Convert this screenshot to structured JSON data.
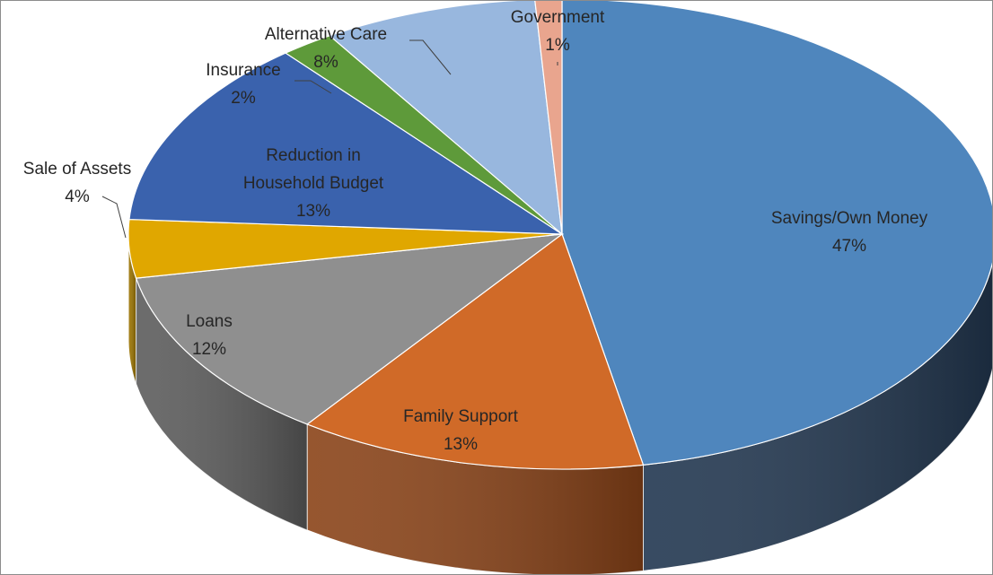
{
  "chart_data": {
    "type": "pie",
    "style": "3d-exploded-none",
    "title": "",
    "slices": [
      {
        "label": "Savings/Own Money",
        "pct_label": "47%",
        "value": 47,
        "color": "#4f86bd",
        "side": "#223750",
        "leader": false
      },
      {
        "label": "Family Support",
        "pct_label": "13%",
        "value": 13,
        "color": "#d06a28",
        "side": "#8a4318",
        "leader": false
      },
      {
        "label": "Loans",
        "pct_label": "12%",
        "value": 12,
        "color": "#8f8f8f",
        "side": "#5c5c5c",
        "leader": false
      },
      {
        "label": "Sale of Assets",
        "pct_label": "4%",
        "value": 4,
        "color": "#e0a700",
        "side": "#9c7400",
        "leader": true
      },
      {
        "label": "Reduction in Household Budget",
        "pct_label": "13%",
        "value": 13,
        "color": "#3a62ad",
        "side": "#27437a",
        "leader": false
      },
      {
        "label": "Insurance",
        "pct_label": "2%",
        "value": 2,
        "color": "#5e9a3a",
        "side": "#3c6526",
        "leader": true
      },
      {
        "label": "Alternative Care",
        "pct_label": "8%",
        "value": 8,
        "color": "#98b7de",
        "side": "#6a86aa",
        "leader": true
      },
      {
        "label": "Government",
        "pct_label": "1%",
        "value": 1,
        "color": "#e9a58e",
        "side": "#a87261",
        "leader": true
      }
    ]
  }
}
